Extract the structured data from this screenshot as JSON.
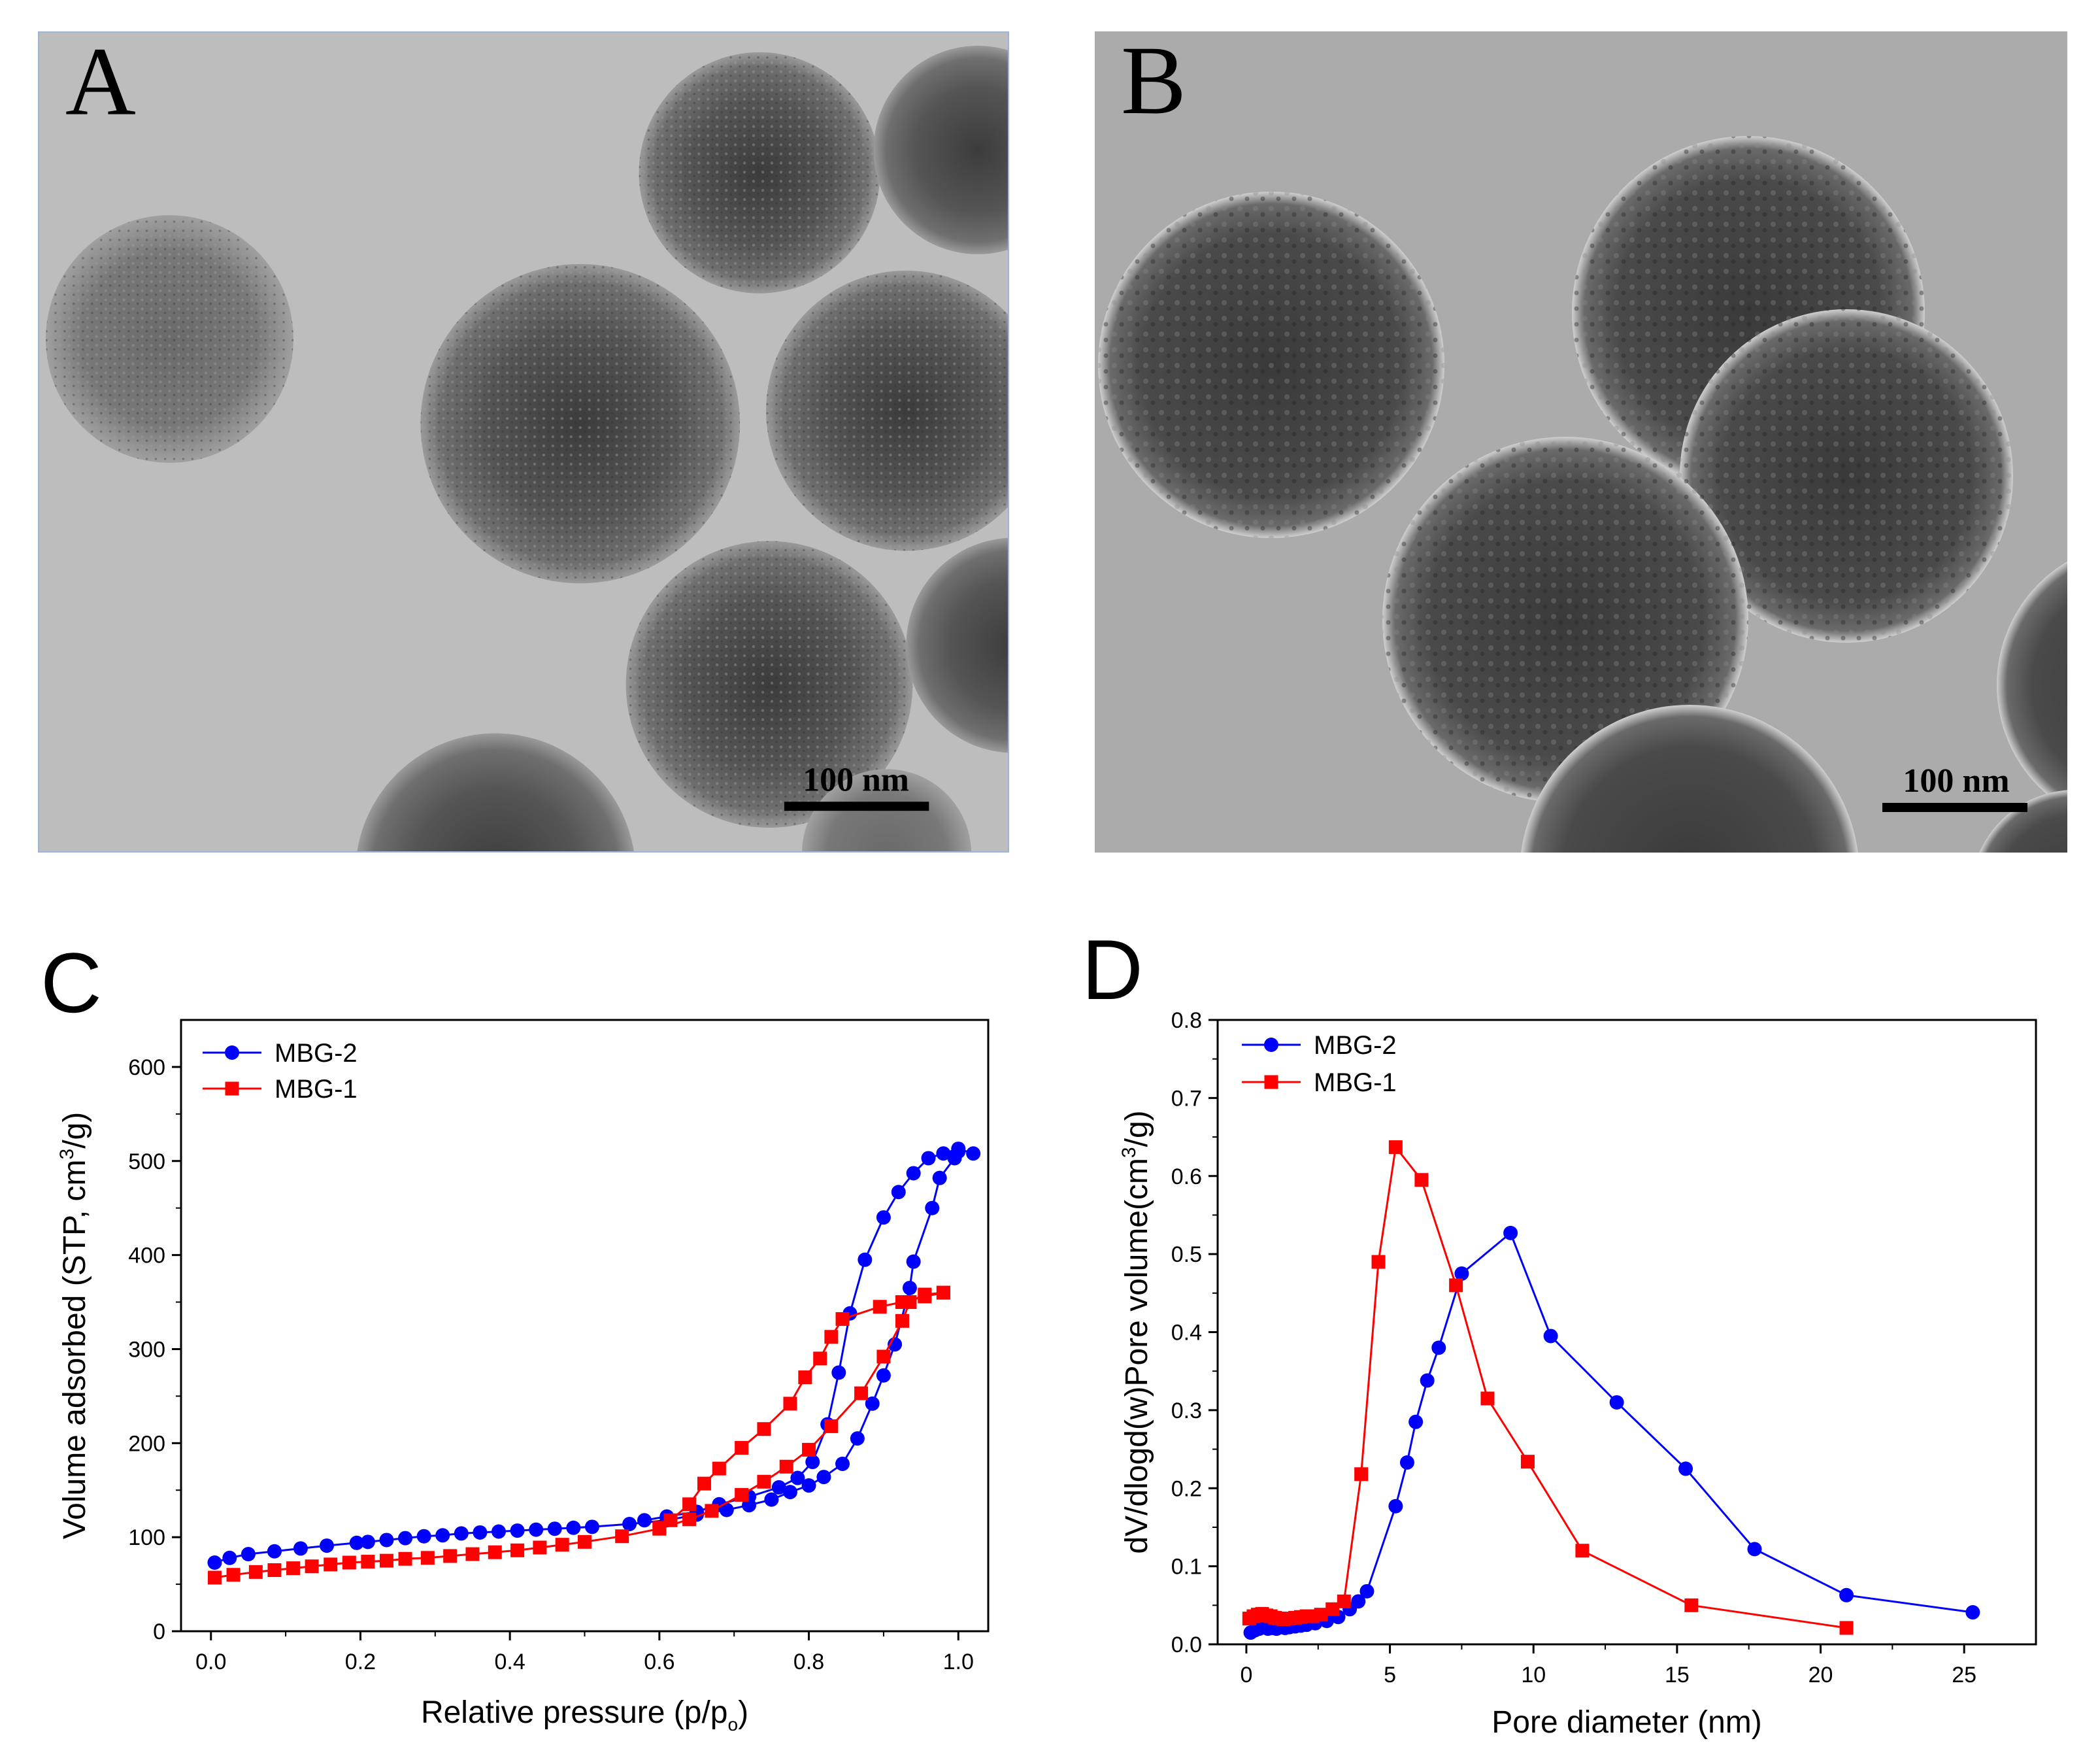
{
  "panels": {
    "a": {
      "letter": "A",
      "scale_bar": "100 nm"
    },
    "b": {
      "letter": "B",
      "scale_bar": "100 nm"
    },
    "c": {
      "letter": "C"
    },
    "d": {
      "letter": "D"
    }
  },
  "colors": {
    "mbg2": "#0000ff",
    "mbg1": "#ff0000"
  },
  "chart_data": [
    {
      "id": "C",
      "type": "line",
      "xlabel": "Relative pressure (p/p",
      "xlabel_sub": "o",
      "xlabel_end": ")",
      "ylabel": "Volume adsorbed (STP, cm",
      "ylabel_sup": "3",
      "ylabel_end": "/g)",
      "xlim": [
        -0.04,
        1.04
      ],
      "ylim": [
        0,
        650
      ],
      "xticks": [
        0.0,
        0.2,
        0.4,
        0.6,
        0.8,
        1.0
      ],
      "xtick_labels": [
        "0.0",
        "0.2",
        "0.4",
        "0.6",
        "0.8",
        "1.0"
      ],
      "yticks": [
        0,
        100,
        200,
        300,
        400,
        500,
        600
      ],
      "ytick_labels": [
        "0",
        "100",
        "200",
        "300",
        "400",
        "500",
        "600"
      ],
      "legend": {
        "placement": "top-left"
      },
      "grid": false,
      "series": [
        {
          "name": "MBG-2",
          "marker": "circle",
          "color": "#0000ff",
          "branches": [
            [
              [
                0.005,
                73
              ],
              [
                0.025,
                78
              ],
              [
                0.05,
                82
              ],
              [
                0.085,
                85
              ],
              [
                0.12,
                88
              ],
              [
                0.155,
                91
              ],
              [
                0.195,
                94
              ],
              [
                0.21,
                95
              ],
              [
                0.235,
                97
              ],
              [
                0.26,
                99
              ],
              [
                0.285,
                101
              ],
              [
                0.31,
                102
              ],
              [
                0.335,
                104
              ],
              [
                0.36,
                105
              ],
              [
                0.385,
                106
              ],
              [
                0.41,
                107
              ],
              [
                0.435,
                108
              ],
              [
                0.46,
                109
              ],
              [
                0.485,
                110
              ],
              [
                0.51,
                111
              ],
              [
                0.56,
                114
              ],
              [
                0.61,
                118
              ],
              [
                0.65,
                124
              ],
              [
                0.69,
                129
              ],
              [
                0.72,
                134
              ],
              [
                0.75,
                140
              ],
              [
                0.775,
                148
              ],
              [
                0.8,
                155
              ],
              [
                0.82,
                164
              ],
              [
                0.845,
                178
              ],
              [
                0.865,
                205
              ],
              [
                0.885,
                242
              ],
              [
                0.9,
                272
              ],
              [
                0.915,
                305
              ],
              [
                0.935,
                365
              ],
              [
                0.94,
                393
              ],
              [
                0.965,
                450
              ],
              [
                0.975,
                482
              ],
              [
                0.995,
                503
              ],
              [
                1.0,
                510
              ]
            ],
            [
              [
                1.02,
                508
              ],
              [
                1.0,
                513
              ],
              [
                0.98,
                508
              ],
              [
                0.96,
                503
              ],
              [
                0.94,
                487
              ],
              [
                0.92,
                467
              ],
              [
                0.9,
                440
              ],
              [
                0.875,
                395
              ],
              [
                0.855,
                338
              ],
              [
                0.84,
                275
              ],
              [
                0.825,
                220
              ],
              [
                0.805,
                180
              ],
              [
                0.785,
                163
              ],
              [
                0.76,
                153
              ],
              [
                0.72,
                143
              ],
              [
                0.68,
                135
              ],
              [
                0.65,
                127
              ],
              [
                0.61,
                122
              ],
              [
                0.58,
                118
              ]
            ]
          ]
        },
        {
          "name": "MBG-1",
          "marker": "square",
          "color": "#ff0000",
          "branches": [
            [
              [
                0.005,
                57
              ],
              [
                0.03,
                60
              ],
              [
                0.06,
                63
              ],
              [
                0.085,
                65
              ],
              [
                0.11,
                67
              ],
              [
                0.135,
                69
              ],
              [
                0.16,
                71
              ],
              [
                0.185,
                73
              ],
              [
                0.21,
                74
              ],
              [
                0.235,
                75
              ],
              [
                0.26,
                77
              ],
              [
                0.29,
                78
              ],
              [
                0.32,
                80
              ],
              [
                0.35,
                82
              ],
              [
                0.38,
                84
              ],
              [
                0.41,
                86
              ],
              [
                0.44,
                89
              ],
              [
                0.47,
                92
              ],
              [
                0.5,
                95
              ],
              [
                0.55,
                101
              ],
              [
                0.6,
                109
              ],
              [
                0.64,
                119
              ],
              [
                0.67,
                128
              ],
              [
                0.71,
                145
              ],
              [
                0.74,
                159
              ],
              [
                0.77,
                175
              ],
              [
                0.8,
                193
              ],
              [
                0.83,
                218
              ],
              [
                0.87,
                253
              ],
              [
                0.9,
                292
              ],
              [
                0.925,
                330
              ],
              [
                0.935,
                350
              ],
              [
                0.955,
                358
              ],
              [
                0.98,
                360
              ]
            ],
            [
              [
                0.98,
                360
              ],
              [
                0.955,
                356
              ],
              [
                0.925,
                350
              ],
              [
                0.895,
                345
              ],
              [
                0.845,
                332
              ],
              [
                0.83,
                313
              ],
              [
                0.815,
                290
              ],
              [
                0.795,
                270
              ],
              [
                0.775,
                242
              ],
              [
                0.74,
                215
              ],
              [
                0.71,
                195
              ],
              [
                0.68,
                173
              ],
              [
                0.66,
                157
              ],
              [
                0.64,
                135
              ],
              [
                0.615,
                118
              ],
              [
                0.6,
                110
              ]
            ]
          ]
        }
      ]
    },
    {
      "id": "D",
      "type": "line",
      "xlabel": "Pore diameter (nm)",
      "ylabel": "dV/dlogd(w)Pore volume(cm",
      "ylabel_sup": "3",
      "ylabel_end": "/g)",
      "xlim": [
        -1,
        27.5
      ],
      "ylim": [
        0,
        0.8
      ],
      "xticks": [
        0,
        5,
        10,
        15,
        20,
        25
      ],
      "xtick_labels": [
        "0",
        "5",
        "10",
        "15",
        "20",
        "25"
      ],
      "yticks": [
        0.0,
        0.1,
        0.2,
        0.3,
        0.4,
        0.5,
        0.6,
        0.7,
        0.8
      ],
      "ytick_labels": [
        "0.0",
        "0.1",
        "0.2",
        "0.3",
        "0.4",
        "0.5",
        "0.6",
        "0.7",
        "0.8"
      ],
      "legend": {
        "placement": "top-left"
      },
      "grid": false,
      "series": [
        {
          "name": "MBG-2",
          "marker": "circle",
          "color": "#0000ff",
          "branches": [
            [
              [
                0.15,
                0.015
              ],
              [
                0.3,
                0.018
              ],
              [
                0.45,
                0.02
              ],
              [
                0.6,
                0.022
              ],
              [
                0.75,
                0.02
              ],
              [
                0.9,
                0.021
              ],
              [
                1.05,
                0.02
              ],
              [
                1.2,
                0.022
              ],
              [
                1.35,
                0.021
              ],
              [
                1.5,
                0.022
              ],
              [
                1.7,
                0.023
              ],
              [
                1.9,
                0.024
              ],
              [
                2.1,
                0.025
              ],
              [
                2.4,
                0.027
              ],
              [
                2.8,
                0.03
              ],
              [
                3.2,
                0.035
              ],
              [
                3.6,
                0.045
              ],
              [
                3.9,
                0.055
              ],
              [
                4.2,
                0.068
              ],
              [
                5.2,
                0.177
              ],
              [
                5.6,
                0.233
              ],
              [
                5.9,
                0.285
              ],
              [
                6.3,
                0.338
              ],
              [
                6.7,
                0.38
              ],
              [
                7.5,
                0.475
              ],
              [
                9.2,
                0.527
              ],
              [
                10.6,
                0.395
              ],
              [
                12.9,
                0.31
              ],
              [
                15.3,
                0.225
              ],
              [
                17.7,
                0.122
              ],
              [
                20.9,
                0.063
              ],
              [
                25.3,
                0.041
              ]
            ]
          ]
        },
        {
          "name": "MBG-1",
          "marker": "square",
          "color": "#ff0000",
          "branches": [
            [
              [
                0.1,
                0.033
              ],
              [
                0.25,
                0.036
              ],
              [
                0.4,
                0.038
              ],
              [
                0.55,
                0.039
              ],
              [
                0.7,
                0.037
              ],
              [
                0.85,
                0.036
              ],
              [
                1.0,
                0.034
              ],
              [
                1.15,
                0.033
              ],
              [
                1.3,
                0.032
              ],
              [
                1.5,
                0.033
              ],
              [
                1.7,
                0.034
              ],
              [
                1.9,
                0.035
              ],
              [
                2.1,
                0.036
              ],
              [
                2.3,
                0.036
              ],
              [
                2.6,
                0.038
              ],
              [
                3.0,
                0.045
              ],
              [
                3.4,
                0.055
              ],
              [
                4.0,
                0.218
              ],
              [
                4.6,
                0.49
              ],
              [
                5.2,
                0.637
              ],
              [
                6.1,
                0.595
              ],
              [
                7.3,
                0.46
              ],
              [
                8.4,
                0.315
              ],
              [
                9.8,
                0.234
              ],
              [
                11.7,
                0.12
              ],
              [
                15.5,
                0.05
              ],
              [
                20.9,
                0.021
              ]
            ]
          ]
        }
      ]
    }
  ]
}
